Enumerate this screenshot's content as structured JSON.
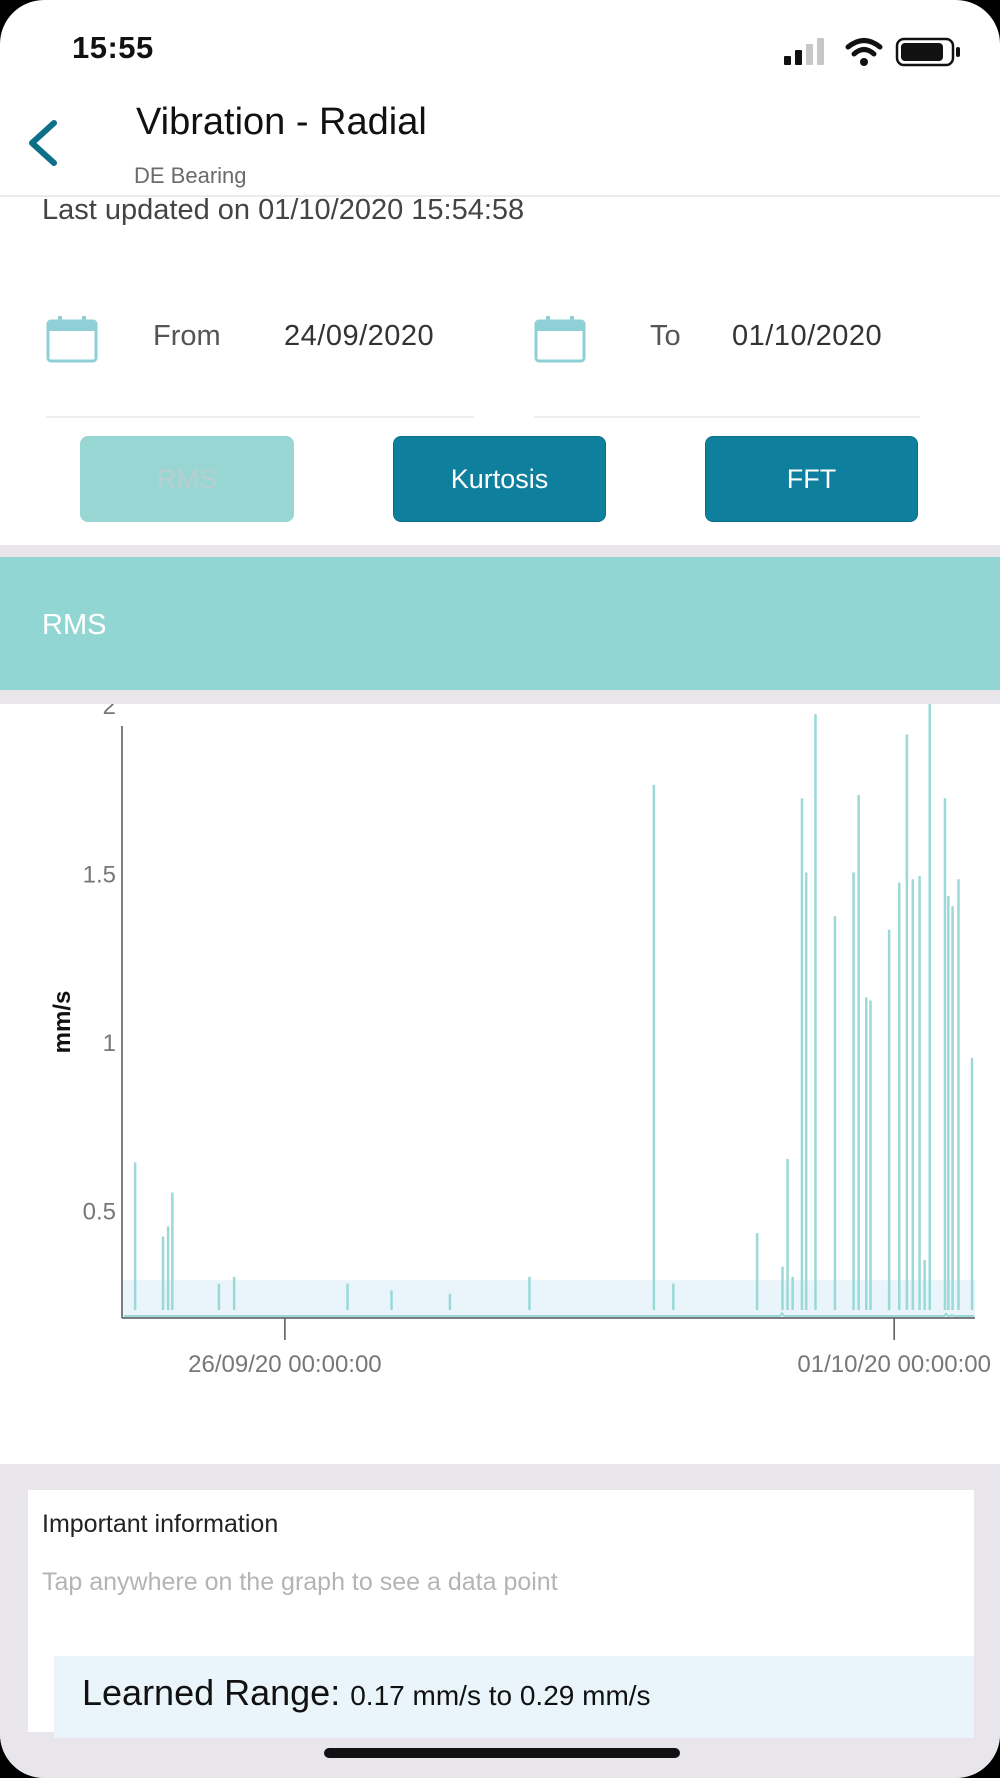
{
  "status_bar": {
    "time": "15:55",
    "signal_icon": "cellular-signal-icon",
    "wifi_icon": "wifi-icon",
    "battery_icon": "battery-icon"
  },
  "header": {
    "back_icon": "chevron-left-icon",
    "title": "Vibration - Radial",
    "subtitle": "DE Bearing"
  },
  "last_updated": "Last updated on 01/10/2020 15:54:58",
  "date_range": {
    "from_label": "From",
    "from_value": "24/09/2020",
    "to_label": "To",
    "to_value": "01/10/2020",
    "icon": "calendar-icon"
  },
  "tabs": [
    {
      "label": "RMS",
      "active": true
    },
    {
      "label": "Kurtosis",
      "active": false
    },
    {
      "label": "FFT",
      "active": false
    }
  ],
  "section": {
    "title": "RMS"
  },
  "chart_data": {
    "type": "line",
    "ylabel": "mm/s",
    "ylim": [
      0.0,
      2.05
    ],
    "yticks": [
      "2",
      "1.5",
      "1",
      "0.5"
    ],
    "xticks": [
      {
        "value": "2020-09-26T00:00:00",
        "label": "26/09/20 00:00:00"
      },
      {
        "value": "2020-10-01T00:00:00",
        "label": "01/10/20 00:00:00"
      }
    ],
    "xlim": [
      "2020-09-24T15:55:00",
      "2020-10-01T15:55:00"
    ],
    "learned_range": [
      0.17,
      0.29
    ],
    "series_color": "#9ad9d7",
    "band_color": "#e9f4fb",
    "baseline": 0.13,
    "spikes": [
      {
        "t": "2020-09-24T18:30:00",
        "value": 0.64
      },
      {
        "t": "2020-09-25T00:00:00",
        "value": 0.42
      },
      {
        "t": "2020-09-25T01:00:00",
        "value": 0.45
      },
      {
        "t": "2020-09-25T01:50:00",
        "value": 0.55
      },
      {
        "t": "2020-09-25T11:00:00",
        "value": 0.28
      },
      {
        "t": "2020-09-25T14:00:00",
        "value": 0.3
      },
      {
        "t": "2020-09-26T12:20:00",
        "value": 0.28
      },
      {
        "t": "2020-09-26T21:00:00",
        "value": 0.26
      },
      {
        "t": "2020-09-27T08:30:00",
        "value": 0.25
      },
      {
        "t": "2020-09-28T00:10:00",
        "value": 0.3
      },
      {
        "t": "2020-09-29T00:40:00",
        "value": 1.76
      },
      {
        "t": "2020-09-29T04:30:00",
        "value": 0.28
      },
      {
        "t": "2020-09-29T21:00:00",
        "value": 0.43
      },
      {
        "t": "2020-09-30T02:00:00",
        "value": 0.33
      },
      {
        "t": "2020-09-30T03:00:00",
        "value": 0.65
      },
      {
        "t": "2020-09-30T04:00:00",
        "value": 0.3
      },
      {
        "t": "2020-09-30T05:50:00",
        "value": 1.72
      },
      {
        "t": "2020-09-30T06:40:00",
        "value": 1.5
      },
      {
        "t": "2020-09-30T08:30:00",
        "value": 1.97
      },
      {
        "t": "2020-09-30T12:20:00",
        "value": 1.37
      },
      {
        "t": "2020-09-30T16:00:00",
        "value": 1.5
      },
      {
        "t": "2020-09-30T17:00:00",
        "value": 1.73
      },
      {
        "t": "2020-09-30T18:30:00",
        "value": 1.13
      },
      {
        "t": "2020-09-30T19:20:00",
        "value": 1.12
      },
      {
        "t": "2020-09-30T23:00:00",
        "value": 1.33
      },
      {
        "t": "2020-10-01T01:00:00",
        "value": 1.47
      },
      {
        "t": "2020-10-01T02:30:00",
        "value": 1.91
      },
      {
        "t": "2020-10-01T03:40:00",
        "value": 1.48
      },
      {
        "t": "2020-10-01T05:00:00",
        "value": 1.49
      },
      {
        "t": "2020-10-01T06:00:00",
        "value": 0.35
      },
      {
        "t": "2020-10-01T07:00:00",
        "value": 2.03
      },
      {
        "t": "2020-10-01T10:00:00",
        "value": 1.72
      },
      {
        "t": "2020-10-01T10:40:00",
        "value": 1.43
      },
      {
        "t": "2020-10-01T11:30:00",
        "value": 1.4
      },
      {
        "t": "2020-10-01T12:40:00",
        "value": 1.48
      },
      {
        "t": "2020-10-01T15:20:00",
        "value": 0.95
      }
    ]
  },
  "info": {
    "title": "Important information",
    "hint": "Tap anywhere on the graph to see a data point",
    "learned_range_label": "Learned Range:",
    "learned_range_value": "0.17 mm/s to 0.29 mm/s"
  }
}
